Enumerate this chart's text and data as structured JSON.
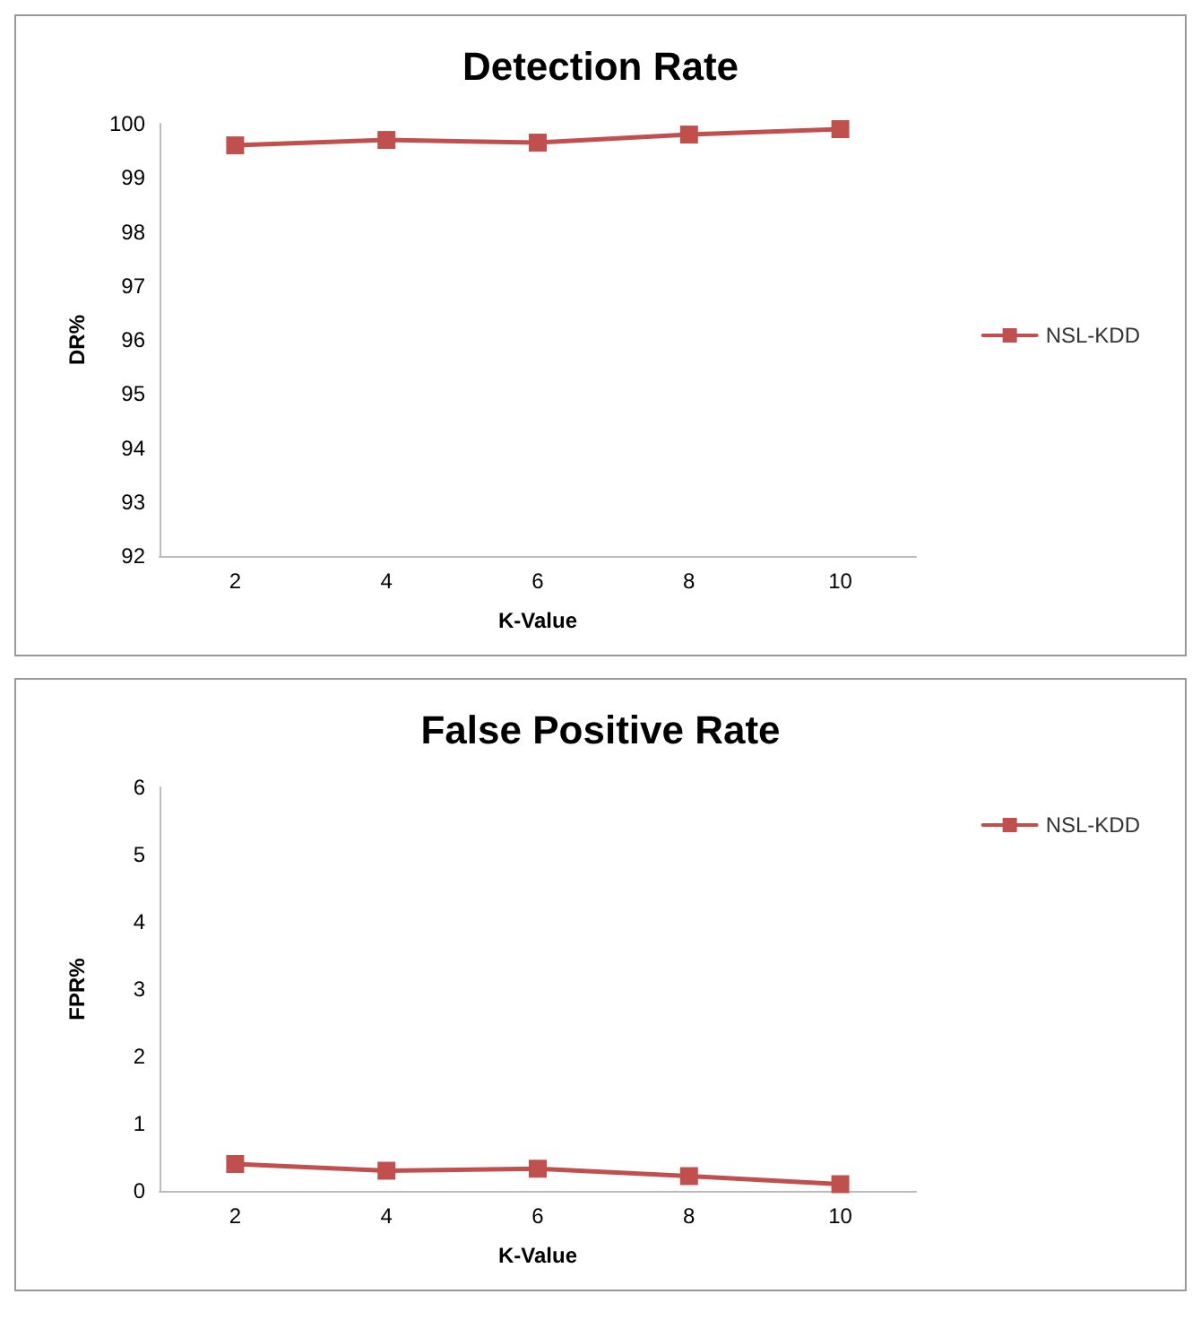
{
  "chart_data": [
    {
      "type": "line",
      "title": "Detection Rate",
      "xlabel": "K-Value",
      "ylabel": "DR%",
      "categories": [
        "2",
        "4",
        "6",
        "8",
        "10"
      ],
      "series": [
        {
          "name": "NSL-KDD",
          "color": "#c0504d",
          "values": [
            99.6,
            99.7,
            99.65,
            99.8,
            99.9
          ]
        }
      ],
      "ylim": [
        92,
        100
      ],
      "yticks": [
        92,
        93,
        94,
        95,
        96,
        97,
        98,
        99,
        100
      ],
      "grid": false,
      "legend": "right",
      "marker": "square",
      "line_style": "solid"
    },
    {
      "type": "line",
      "title": "False Positive Rate",
      "xlabel": "K-Value",
      "ylabel": "FPR%",
      "categories": [
        "2",
        "4",
        "6",
        "8",
        "10"
      ],
      "series": [
        {
          "name": "NSL-KDD",
          "color": "#c0504d",
          "values": [
            0.4,
            0.3,
            0.33,
            0.22,
            0.1
          ]
        }
      ],
      "ylim": [
        0,
        6
      ],
      "yticks": [
        0,
        1,
        2,
        3,
        4,
        5,
        6
      ],
      "grid": false,
      "legend": "top right",
      "marker": "square",
      "line_style": "solid"
    }
  ]
}
